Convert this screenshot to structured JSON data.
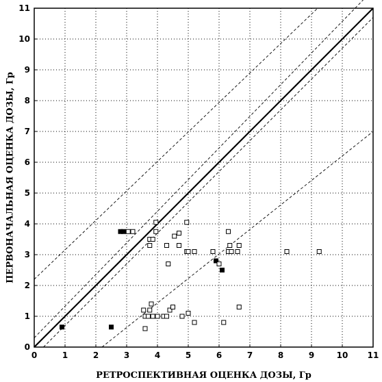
{
  "chart_data": {
    "type": "scatter",
    "xlabel": "РЕТРОСПЕКТИВНАЯ ОЦЕНКА ДОЗЫ, Гр",
    "ylabel": "ПЕРВОНАЧАЛЬНАЯ ОЦЕНКА ДОЗЫ, Гр",
    "xlim": [
      0,
      11
    ],
    "ylim": [
      0,
      11
    ],
    "xticks": [
      "0",
      "1",
      "2",
      "3",
      "4",
      "5",
      "6",
      "7",
      "8",
      "9",
      "10",
      "11"
    ],
    "yticks": [
      "0",
      "1",
      "2",
      "3",
      "4",
      "5",
      "6",
      "7",
      "8",
      "9",
      "10",
      "11"
    ],
    "grid": "dotted",
    "legend": "none",
    "reference_lines": [
      {
        "style": "solid-bold",
        "x": [
          0,
          11
        ],
        "y": [
          0,
          11
        ]
      },
      {
        "style": "dashed",
        "x": [
          0,
          11
        ],
        "y": [
          0.3,
          11.6
        ]
      },
      {
        "style": "dashed",
        "x": [
          0.3,
          11
        ],
        "y": [
          0,
          10.7
        ]
      },
      {
        "style": "dashed",
        "x": [
          0,
          9.2
        ],
        "y": [
          2.2,
          11
        ]
      },
      {
        "style": "dashed",
        "x": [
          2.2,
          11
        ],
        "y": [
          0,
          7
        ]
      }
    ],
    "series": [
      {
        "marker": "filled-square",
        "color": "#000000",
        "points": [
          [
            0.9,
            0.65
          ],
          [
            2.5,
            0.65
          ],
          [
            2.8,
            3.75
          ],
          [
            2.9,
            3.75
          ],
          [
            5.9,
            2.8
          ],
          [
            6.1,
            2.5
          ]
        ]
      },
      {
        "marker": "open-square",
        "color": "#000000",
        "points": [
          [
            3.05,
            3.75
          ],
          [
            3.2,
            3.75
          ],
          [
            3.6,
            1.0
          ],
          [
            3.55,
            1.2
          ],
          [
            3.6,
            0.6
          ],
          [
            3.7,
            1.0
          ],
          [
            3.75,
            1.2
          ],
          [
            3.8,
            1.4
          ],
          [
            3.85,
            1.0
          ],
          [
            3.75,
            3.5
          ],
          [
            3.75,
            3.3
          ],
          [
            3.85,
            3.5
          ],
          [
            3.95,
            4.05
          ],
          [
            3.95,
            3.75
          ],
          [
            4.0,
            1.0
          ],
          [
            4.2,
            1.0
          ],
          [
            4.3,
            1.0
          ],
          [
            4.4,
            1.2
          ],
          [
            4.5,
            1.3
          ],
          [
            4.3,
            3.3
          ],
          [
            4.35,
            2.7
          ],
          [
            4.55,
            3.6
          ],
          [
            4.7,
            3.3
          ],
          [
            4.7,
            3.7
          ],
          [
            4.8,
            1.0
          ],
          [
            4.95,
            4.05
          ],
          [
            4.95,
            3.1
          ],
          [
            5.0,
            3.1
          ],
          [
            5.0,
            1.1
          ],
          [
            5.2,
            0.8
          ],
          [
            5.2,
            3.1
          ],
          [
            5.8,
            3.1
          ],
          [
            6.0,
            2.7
          ],
          [
            6.15,
            0.8
          ],
          [
            6.3,
            3.75
          ],
          [
            6.3,
            3.1
          ],
          [
            6.35,
            3.3
          ],
          [
            6.4,
            3.1
          ],
          [
            6.6,
            3.1
          ],
          [
            6.65,
            3.3
          ],
          [
            6.65,
            1.3
          ],
          [
            8.2,
            3.1
          ],
          [
            9.25,
            3.1
          ]
        ]
      }
    ]
  }
}
